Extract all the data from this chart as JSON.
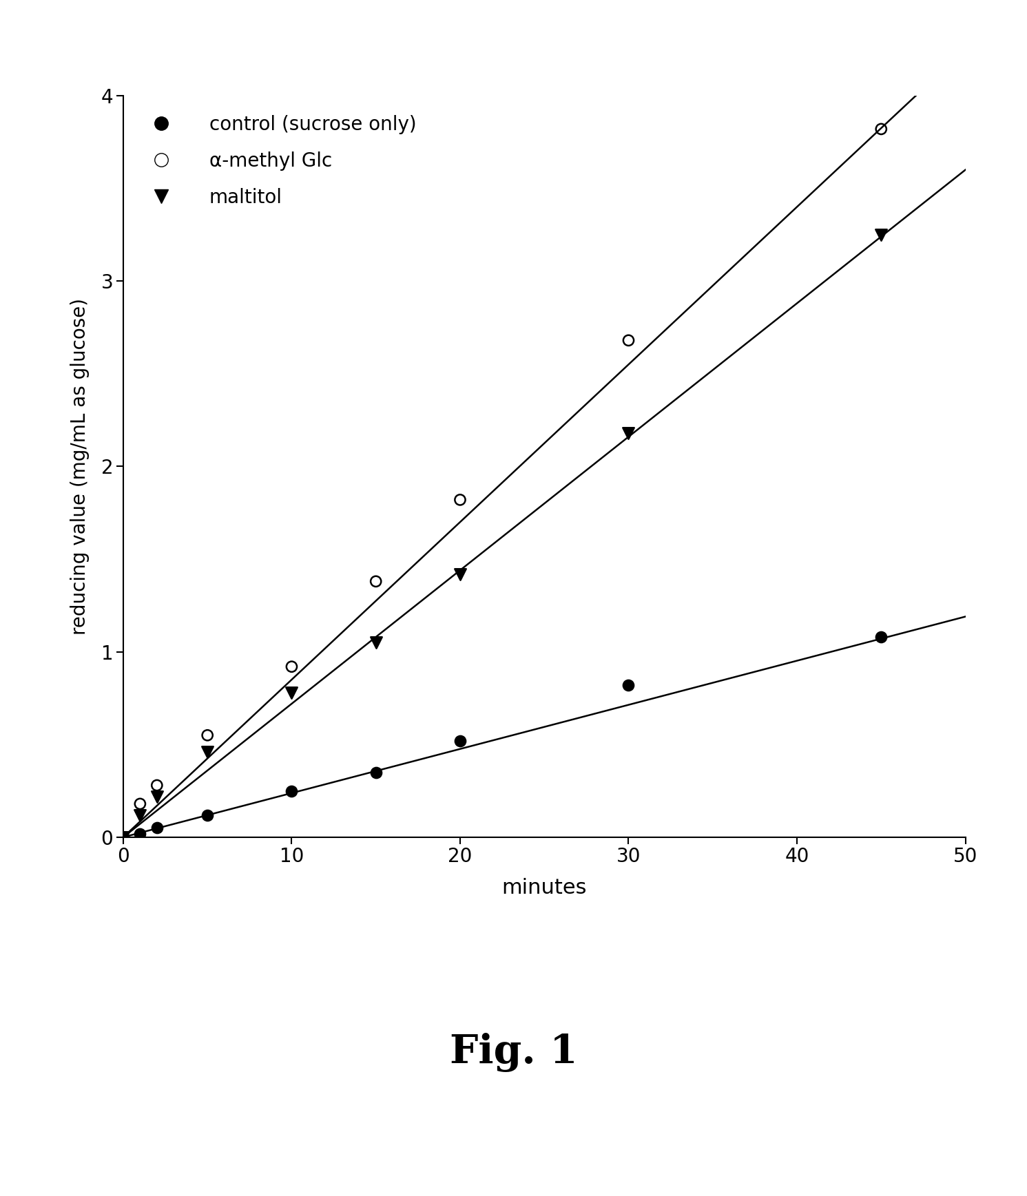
{
  "title": "Fig. 1",
  "xlabel": "minutes",
  "ylabel": "reducing value (mg/mL as glucose)",
  "xlim": [
    0,
    50
  ],
  "ylim": [
    0,
    4
  ],
  "xticks": [
    0,
    10,
    20,
    30,
    40,
    50
  ],
  "yticks": [
    0,
    1,
    2,
    3,
    4
  ],
  "background_color": "#ffffff",
  "series": [
    {
      "label": "control (sucrose only)",
      "x": [
        0,
        1,
        2,
        5,
        10,
        15,
        20,
        30,
        45
      ],
      "y": [
        0,
        0.02,
        0.05,
        0.12,
        0.25,
        0.35,
        0.52,
        0.82,
        1.08
      ],
      "marker": "o",
      "marker_filled": true,
      "marker_size": 10,
      "color": "#000000",
      "line_slope": 0.0238,
      "line_intercept": 0.0
    },
    {
      "label": "α-methyl Glc",
      "x": [
        0,
        1,
        2,
        5,
        10,
        15,
        20,
        30,
        45
      ],
      "y": [
        0,
        0.18,
        0.28,
        0.55,
        0.92,
        1.38,
        1.82,
        2.68,
        3.82
      ],
      "marker": "o",
      "marker_filled": false,
      "marker_size": 10,
      "color": "#000000",
      "line_slope": 0.085,
      "line_intercept": 0.0
    },
    {
      "label": "maltitol",
      "x": [
        0,
        1,
        2,
        5,
        10,
        15,
        20,
        30,
        45
      ],
      "y": [
        0,
        0.12,
        0.22,
        0.46,
        0.78,
        1.05,
        1.42,
        2.18,
        3.25
      ],
      "marker": "v",
      "marker_filled": true,
      "marker_size": 10,
      "color": "#000000",
      "line_slope": 0.072,
      "line_intercept": 0.0
    }
  ]
}
